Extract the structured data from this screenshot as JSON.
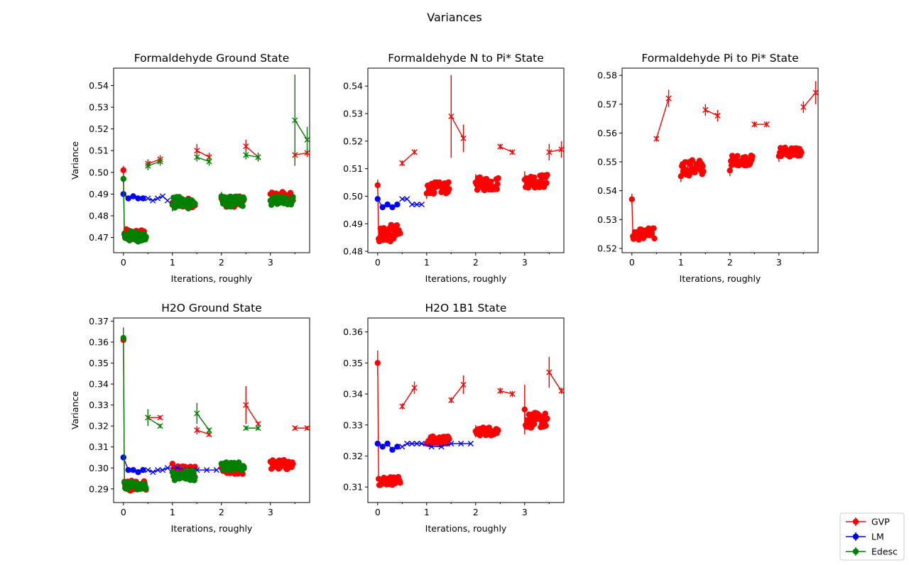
{
  "figure": {
    "title": "Variances"
  },
  "legend": {
    "placement": "bottom-right",
    "entries": [
      {
        "label": "GVP",
        "color": "#ff0000"
      },
      {
        "label": "LM",
        "color": "#0000ff"
      },
      {
        "label": "Edesc",
        "color": "#008000"
      }
    ]
  },
  "chart_data": [
    {
      "type": "scatter",
      "title": "Formaldehyde Ground State",
      "xlabel": "Iterations, roughly",
      "ylabel": "Variance",
      "xlim": [
        -0.2,
        3.8
      ],
      "ylim": [
        0.463,
        0.548
      ],
      "xticks": [
        0,
        1,
        2,
        3
      ],
      "yticks": [
        0.47,
        0.48,
        0.49,
        0.5,
        0.51,
        0.52,
        0.53,
        0.54
      ],
      "ytick_labels": [
        "0.47",
        "0.48",
        "0.49",
        "0.50",
        "0.51",
        "0.52",
        "0.53",
        "0.54"
      ],
      "series": [
        {
          "name": "GVP",
          "color": "#ff0000",
          "clusters": [
            {
              "x0": 0.0,
              "x1": 0.5,
              "lo": 0.467,
              "hi": 0.475,
              "first": 0.501,
              "err": 0.002
            },
            {
              "x0": 1.0,
              "x1": 1.5,
              "lo": 0.483,
              "hi": 0.489,
              "first": 0.486,
              "err": 0.002
            },
            {
              "x0": 2.0,
              "x1": 2.5,
              "lo": 0.483,
              "hi": 0.49,
              "first": 0.488,
              "err": 0.002
            },
            {
              "x0": 3.0,
              "x1": 3.5,
              "lo": 0.485,
              "hi": 0.492,
              "first": 0.49,
              "err": 0.002
            }
          ],
          "x_points": [
            {
              "x": 0.5,
              "y": 0.504,
              "err": 0.002
            },
            {
              "x": 0.75,
              "y": 0.506,
              "err": 0.002
            },
            {
              "x": 1.5,
              "y": 0.51,
              "err": 0.003
            },
            {
              "x": 1.75,
              "y": 0.507,
              "err": 0.002
            },
            {
              "x": 2.5,
              "y": 0.512,
              "err": 0.003
            },
            {
              "x": 2.75,
              "y": 0.507,
              "err": 0.002
            },
            {
              "x": 3.5,
              "y": 0.508,
              "err": 0.002
            },
            {
              "x": 3.75,
              "y": 0.509,
              "err": 0.002
            }
          ]
        },
        {
          "name": "LM",
          "color": "#0000ff",
          "points": [
            {
              "x": 0.0,
              "y": 0.49
            },
            {
              "x": 0.1,
              "y": 0.488
            },
            {
              "x": 0.2,
              "y": 0.489
            },
            {
              "x": 0.3,
              "y": 0.488
            },
            {
              "x": 0.4,
              "y": 0.488
            }
          ],
          "x_points": [
            {
              "x": 0.5,
              "y": 0.488
            },
            {
              "x": 0.6,
              "y": 0.487
            },
            {
              "x": 0.7,
              "y": 0.488
            },
            {
              "x": 0.8,
              "y": 0.489
            },
            {
              "x": 0.9,
              "y": 0.487
            }
          ]
        },
        {
          "name": "Edesc",
          "color": "#008000",
          "clusters": [
            {
              "x0": 0.0,
              "x1": 0.5,
              "lo": 0.467,
              "hi": 0.474,
              "first": 0.497,
              "err": 0.002
            },
            {
              "x0": 1.0,
              "x1": 1.5,
              "lo": 0.482,
              "hi": 0.49,
              "first": 0.485,
              "err": 0.003
            },
            {
              "x0": 2.0,
              "x1": 2.5,
              "lo": 0.483,
              "hi": 0.49,
              "first": 0.489,
              "err": 0.002
            },
            {
              "x0": 3.0,
              "x1": 3.5,
              "lo": 0.484,
              "hi": 0.49,
              "first": 0.487,
              "err": 0.002
            }
          ],
          "x_points": [
            {
              "x": 0.5,
              "y": 0.503,
              "err": 0.002
            },
            {
              "x": 0.75,
              "y": 0.505,
              "err": 0.002
            },
            {
              "x": 1.5,
              "y": 0.507,
              "err": 0.002
            },
            {
              "x": 1.75,
              "y": 0.505,
              "err": 0.002
            },
            {
              "x": 2.5,
              "y": 0.508,
              "err": 0.002
            },
            {
              "x": 2.75,
              "y": 0.507,
              "err": 0.002
            },
            {
              "x": 3.5,
              "y": 0.524,
              "err": 0.021
            },
            {
              "x": 3.75,
              "y": 0.515,
              "err": 0.006
            }
          ]
        }
      ]
    },
    {
      "type": "scatter",
      "title": "Formaldehyde N to Pi* State",
      "xlabel": "Iterations, roughly",
      "ylabel": "",
      "xlim": [
        -0.2,
        3.8
      ],
      "ylim": [
        0.4795,
        0.5465
      ],
      "xticks": [
        0,
        1,
        2,
        3
      ],
      "yticks": [
        0.48,
        0.49,
        0.5,
        0.51,
        0.52,
        0.53,
        0.54
      ],
      "ytick_labels": [
        "0.48",
        "0.49",
        "0.50",
        "0.51",
        "0.52",
        "0.53",
        "0.54"
      ],
      "series": [
        {
          "name": "GVP",
          "color": "#ff0000",
          "clusters": [
            {
              "x0": 0.0,
              "x1": 0.5,
              "lo": 0.482,
              "hi": 0.491,
              "first": 0.504,
              "err": 0.002
            },
            {
              "x0": 1.0,
              "x1": 1.5,
              "lo": 0.5,
              "hi": 0.506,
              "first": 0.501,
              "err": 0.002
            },
            {
              "x0": 2.0,
              "x1": 2.5,
              "lo": 0.501,
              "hi": 0.508,
              "first": 0.505,
              "err": 0.003
            },
            {
              "x0": 3.0,
              "x1": 3.5,
              "lo": 0.502,
              "hi": 0.509,
              "first": 0.506,
              "err": 0.003
            }
          ],
          "x_points": [
            {
              "x": 0.5,
              "y": 0.512,
              "err": 0.001
            },
            {
              "x": 0.75,
              "y": 0.516,
              "err": 0.001
            },
            {
              "x": 1.5,
              "y": 0.529,
              "err": 0.015
            },
            {
              "x": 1.75,
              "y": 0.521,
              "err": 0.005
            },
            {
              "x": 2.5,
              "y": 0.518,
              "err": 0.001
            },
            {
              "x": 2.75,
              "y": 0.516,
              "err": 0.001
            },
            {
              "x": 3.5,
              "y": 0.516,
              "err": 0.003
            },
            {
              "x": 3.75,
              "y": 0.517,
              "err": 0.003
            }
          ]
        },
        {
          "name": "LM",
          "color": "#0000ff",
          "points": [
            {
              "x": 0.0,
              "y": 0.499
            },
            {
              "x": 0.1,
              "y": 0.496
            },
            {
              "x": 0.2,
              "y": 0.497
            },
            {
              "x": 0.3,
              "y": 0.496
            },
            {
              "x": 0.4,
              "y": 0.497
            }
          ],
          "x_points": [
            {
              "x": 0.5,
              "y": 0.499
            },
            {
              "x": 0.6,
              "y": 0.499
            },
            {
              "x": 0.7,
              "y": 0.497
            },
            {
              "x": 0.8,
              "y": 0.497
            },
            {
              "x": 0.9,
              "y": 0.497
            }
          ]
        }
      ]
    },
    {
      "type": "scatter",
      "title": "Formaldehyde Pi to Pi* State",
      "xlabel": "Iterations, roughly",
      "ylabel": "",
      "xlim": [
        -0.2,
        3.8
      ],
      "ylim": [
        0.5185,
        0.5825
      ],
      "xticks": [
        0,
        1,
        2,
        3
      ],
      "yticks": [
        0.52,
        0.53,
        0.54,
        0.55,
        0.56,
        0.57,
        0.58
      ],
      "ytick_labels": [
        "0.52",
        "0.53",
        "0.54",
        "0.55",
        "0.56",
        "0.57",
        "0.58"
      ],
      "series": [
        {
          "name": "GVP",
          "color": "#ff0000",
          "clusters": [
            {
              "x0": 0.0,
              "x1": 0.5,
              "lo": 0.522,
              "hi": 0.528,
              "first": 0.537,
              "err": 0.002
            },
            {
              "x0": 1.0,
              "x1": 1.5,
              "lo": 0.544,
              "hi": 0.552,
              "first": 0.545,
              "err": 0.002
            },
            {
              "x0": 2.0,
              "x1": 2.5,
              "lo": 0.548,
              "hi": 0.553,
              "first": 0.547,
              "err": 0.002
            },
            {
              "x0": 3.0,
              "x1": 3.5,
              "lo": 0.551,
              "hi": 0.556,
              "first": 0.552,
              "err": 0.002
            }
          ],
          "x_points": [
            {
              "x": 0.5,
              "y": 0.558,
              "err": 0.001
            },
            {
              "x": 0.75,
              "y": 0.572,
              "err": 0.003
            },
            {
              "x": 1.5,
              "y": 0.568,
              "err": 0.002
            },
            {
              "x": 1.75,
              "y": 0.566,
              "err": 0.002
            },
            {
              "x": 2.5,
              "y": 0.563,
              "err": 0.001
            },
            {
              "x": 2.75,
              "y": 0.563,
              "err": 0.001
            },
            {
              "x": 3.5,
              "y": 0.569,
              "err": 0.002
            },
            {
              "x": 3.75,
              "y": 0.574,
              "err": 0.004
            }
          ]
        }
      ]
    },
    {
      "type": "scatter",
      "title": "H2O Ground State",
      "xlabel": "Iterations, roughly",
      "ylabel": "Variance",
      "xlim": [
        -0.2,
        3.8
      ],
      "ylim": [
        0.2835,
        0.3715
      ],
      "xticks": [
        0,
        1,
        2,
        3
      ],
      "yticks": [
        0.29,
        0.3,
        0.31,
        0.32,
        0.33,
        0.34,
        0.35,
        0.36,
        0.37
      ],
      "ytick_labels": [
        "0.29",
        "0.30",
        "0.31",
        "0.32",
        "0.33",
        "0.34",
        "0.35",
        "0.36",
        "0.37"
      ],
      "series": [
        {
          "name": "GVP",
          "color": "#ff0000",
          "clusters": [
            {
              "x0": 0.0,
              "x1": 0.5,
              "lo": 0.288,
              "hi": 0.295,
              "first": 0.361,
              "err": 0.002
            },
            {
              "x0": 1.0,
              "x1": 1.5,
              "lo": 0.294,
              "hi": 0.302,
              "first": 0.302,
              "err": 0.001
            },
            {
              "x0": 2.0,
              "x1": 2.5,
              "lo": 0.296,
              "hi": 0.302,
              "first": 0.3,
              "err": 0.001
            },
            {
              "x0": 3.0,
              "x1": 3.5,
              "lo": 0.298,
              "hi": 0.305,
              "first": 0.303,
              "err": 0.001
            }
          ],
          "x_points": [
            {
              "x": 0.5,
              "y": 0.324,
              "err": 0.002
            },
            {
              "x": 0.75,
              "y": 0.324,
              "err": 0.001
            },
            {
              "x": 1.5,
              "y": 0.318,
              "err": 0.002
            },
            {
              "x": 1.75,
              "y": 0.316,
              "err": 0.001
            },
            {
              "x": 2.5,
              "y": 0.33,
              "err": 0.009
            },
            {
              "x": 2.75,
              "y": 0.321,
              "err": 0.001
            },
            {
              "x": 3.5,
              "y": 0.319,
              "err": 0.001
            },
            {
              "x": 3.75,
              "y": 0.319,
              "err": 0.001
            }
          ]
        },
        {
          "name": "LM",
          "color": "#0000ff",
          "points": [
            {
              "x": 0.0,
              "y": 0.305
            },
            {
              "x": 0.1,
              "y": 0.299
            },
            {
              "x": 0.2,
              "y": 0.299
            },
            {
              "x": 0.3,
              "y": 0.298
            },
            {
              "x": 0.4,
              "y": 0.299
            }
          ],
          "x_points": [
            {
              "x": 0.5,
              "y": 0.299
            },
            {
              "x": 0.6,
              "y": 0.298
            },
            {
              "x": 0.7,
              "y": 0.299
            },
            {
              "x": 0.8,
              "y": 0.299
            },
            {
              "x": 0.9,
              "y": 0.3
            },
            {
              "x": 1.1,
              "y": 0.3
            },
            {
              "x": 1.3,
              "y": 0.299
            },
            {
              "x": 1.5,
              "y": 0.299
            },
            {
              "x": 1.7,
              "y": 0.299
            },
            {
              "x": 1.9,
              "y": 0.299
            }
          ]
        },
        {
          "name": "Edesc",
          "color": "#008000",
          "clusters": [
            {
              "x0": 0.0,
              "x1": 0.5,
              "lo": 0.289,
              "hi": 0.294,
              "first": 0.362,
              "err": 0.005
            },
            {
              "x0": 1.0,
              "x1": 1.5,
              "lo": 0.293,
              "hi": 0.3,
              "first": 0.298,
              "err": 0.001
            },
            {
              "x0": 2.0,
              "x1": 2.5,
              "lo": 0.298,
              "hi": 0.304,
              "first": 0.302,
              "err": 0.001
            }
          ],
          "x_points": [
            {
              "x": 0.5,
              "y": 0.324,
              "err": 0.004
            },
            {
              "x": 0.75,
              "y": 0.32,
              "err": 0.001
            },
            {
              "x": 1.5,
              "y": 0.326,
              "err": 0.005
            },
            {
              "x": 1.75,
              "y": 0.318,
              "err": 0.001
            },
            {
              "x": 2.5,
              "y": 0.319,
              "err": 0.001
            },
            {
              "x": 2.75,
              "y": 0.319,
              "err": 0.001
            }
          ]
        }
      ]
    },
    {
      "type": "scatter",
      "title": "H2O 1B1 State",
      "xlabel": "Iterations, roughly",
      "ylabel": "",
      "xlim": [
        -0.2,
        3.8
      ],
      "ylim": [
        0.305,
        0.3645
      ],
      "xticks": [
        0,
        1,
        2,
        3
      ],
      "yticks": [
        0.31,
        0.32,
        0.33,
        0.34,
        0.35,
        0.36
      ],
      "ytick_labels": [
        "0.31",
        "0.32",
        "0.33",
        "0.34",
        "0.35",
        "0.36"
      ],
      "series": [
        {
          "name": "GVP",
          "color": "#ff0000",
          "clusters": [
            {
              "x0": 0.0,
              "x1": 0.5,
              "lo": 0.31,
              "hi": 0.314,
              "first": 0.35,
              "err": 0.004
            },
            {
              "x0": 1.0,
              "x1": 1.5,
              "lo": 0.323,
              "hi": 0.327,
              "first": 0.324,
              "err": 0.001
            },
            {
              "x0": 2.0,
              "x1": 2.5,
              "lo": 0.326,
              "hi": 0.33,
              "first": 0.328,
              "err": 0.002
            },
            {
              "x0": 3.0,
              "x1": 3.5,
              "lo": 0.328,
              "hi": 0.335,
              "first": 0.335,
              "err": 0.008
            }
          ],
          "x_points": [
            {
              "x": 0.5,
              "y": 0.336,
              "err": 0.001
            },
            {
              "x": 0.75,
              "y": 0.342,
              "err": 0.002
            },
            {
              "x": 1.5,
              "y": 0.338,
              "err": 0.001
            },
            {
              "x": 1.75,
              "y": 0.343,
              "err": 0.003
            },
            {
              "x": 2.5,
              "y": 0.341,
              "err": 0.001
            },
            {
              "x": 2.75,
              "y": 0.34,
              "err": 0.001
            },
            {
              "x": 3.5,
              "y": 0.347,
              "err": 0.005
            },
            {
              "x": 3.75,
              "y": 0.341,
              "err": 0.001
            }
          ]
        },
        {
          "name": "LM",
          "color": "#0000ff",
          "points": [
            {
              "x": 0.0,
              "y": 0.324
            },
            {
              "x": 0.1,
              "y": 0.323
            },
            {
              "x": 0.2,
              "y": 0.324
            },
            {
              "x": 0.3,
              "y": 0.322
            },
            {
              "x": 0.4,
              "y": 0.323
            }
          ],
          "x_points": [
            {
              "x": 0.5,
              "y": 0.323
            },
            {
              "x": 0.6,
              "y": 0.324
            },
            {
              "x": 0.7,
              "y": 0.324
            },
            {
              "x": 0.8,
              "y": 0.324
            },
            {
              "x": 0.9,
              "y": 0.324
            },
            {
              "x": 1.1,
              "y": 0.323
            },
            {
              "x": 1.3,
              "y": 0.323
            },
            {
              "x": 1.5,
              "y": 0.324
            },
            {
              "x": 1.7,
              "y": 0.324
            },
            {
              "x": 1.9,
              "y": 0.324
            }
          ]
        }
      ]
    }
  ]
}
